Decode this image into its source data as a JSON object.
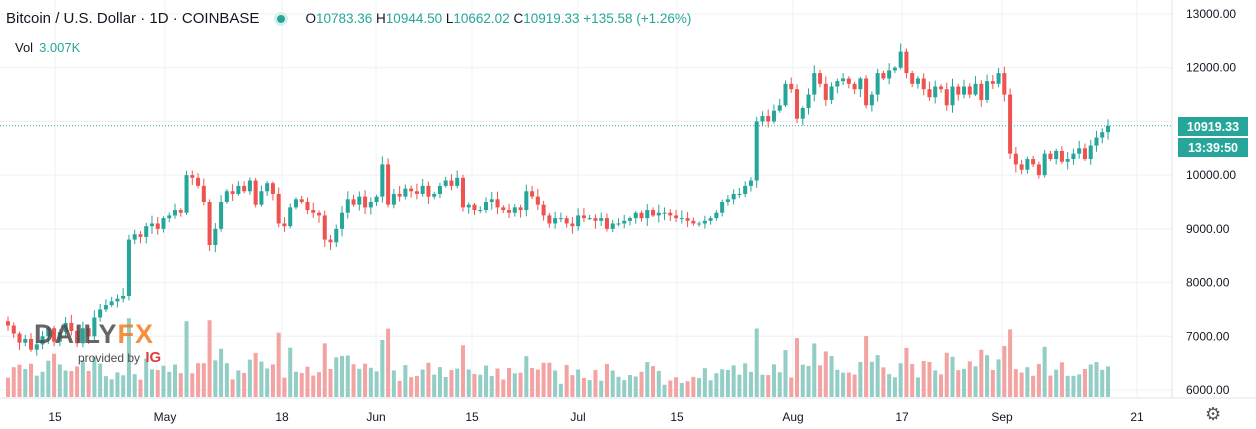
{
  "header": {
    "symbol": "Bitcoin / U.S. Dollar",
    "interval": "1D",
    "exchange": "COINBASE",
    "open_key": "O",
    "open": "10783.36",
    "high_key": "H",
    "high": "10944.50",
    "low_key": "L",
    "low": "10662.02",
    "close_key": "C",
    "close": "10919.33",
    "change": "+135.58 (+1.26%)"
  },
  "volume": {
    "label": "Vol",
    "value": "3.007K"
  },
  "price_tag": {
    "last_price": "10919.33",
    "countdown": "13:39:50"
  },
  "logo": {
    "brand_main": "DAILY",
    "brand_fx": "FX",
    "provided_by": "provided by",
    "ig": "IG"
  },
  "colors": {
    "up": "#26a69a",
    "down": "#ef5350",
    "vol_up": "#93cec6",
    "vol_down": "#f4a3a3",
    "grid": "#eef0f3"
  },
  "icons": {
    "settings": "gear-icon"
  },
  "chart_data": {
    "type": "candlestick",
    "x_tick_labels": [
      "15",
      "May",
      "18",
      "Jun",
      "15",
      "Jul",
      "15",
      "Aug",
      "17",
      "Sep",
      "21"
    ],
    "y_tick_labels": [
      "13000.00",
      "12000.00",
      "11000.00",
      "10000.00",
      "9000.00",
      "8000.00",
      "7000.00",
      "6000.00"
    ],
    "ylim": [
      5850,
      13200
    ],
    "grid": true,
    "last_price": 10919.33,
    "close_series": [
      7200,
      7050,
      6880,
      6950,
      6750,
      6850,
      7000,
      7150,
      6900,
      7080,
      7250,
      7100,
      6870,
      7150,
      7000,
      7350,
      7500,
      7580,
      7650,
      7700,
      7750,
      8800,
      8900,
      8850,
      9050,
      9100,
      9000,
      9200,
      9250,
      9350,
      9300,
      10000,
      9950,
      9800,
      9500,
      8700,
      9000,
      9500,
      9700,
      9650,
      9800,
      9700,
      9900,
      9450,
      9700,
      9850,
      9650,
      9100,
      9050,
      9400,
      9550,
      9500,
      9350,
      9300,
      9250,
      8800,
      8750,
      9000,
      9300,
      9550,
      9450,
      9600,
      9400,
      9500,
      9600,
      10200,
      9450,
      9650,
      9600,
      9750,
      9700,
      9650,
      9800,
      9600,
      9650,
      9800,
      9900,
      9800,
      9950,
      9400,
      9450,
      9350,
      9350,
      9500,
      9550,
      9400,
      9350,
      9300,
      9400,
      9350,
      9700,
      9600,
      9450,
      9250,
      9100,
      9200,
      9200,
      9100,
      9050,
      9250,
      9200,
      9200,
      9150,
      9200,
      9000,
      9100,
      9100,
      9150,
      9200,
      9300,
      9200,
      9350,
      9250,
      9300,
      9300,
      9250,
      9200,
      9200,
      9150,
      9100,
      9100,
      9150,
      9200,
      9300,
      9500,
      9550,
      9650,
      9650,
      9800,
      9900,
      11000,
      11100,
      11000,
      11200,
      11300,
      11700,
      11600,
      11050,
      11250,
      11500,
      11900,
      11700,
      11400,
      11650,
      11750,
      11800,
      11700,
      11600,
      11800,
      11300,
      11500,
      11900,
      11800,
      11950,
      12000,
      12300,
      11900,
      11700,
      11800,
      11600,
      11450,
      11650,
      11600,
      11300,
      11650,
      11500,
      11650,
      11500,
      11700,
      11400,
      11750,
      11700,
      11900,
      11500,
      10400,
      10200,
      10100,
      10300,
      10200,
      10000,
      10400,
      10300,
      10450,
      10250,
      10300,
      10400,
      10500,
      10300,
      10550,
      10700,
      10800,
      10919
    ]
  }
}
